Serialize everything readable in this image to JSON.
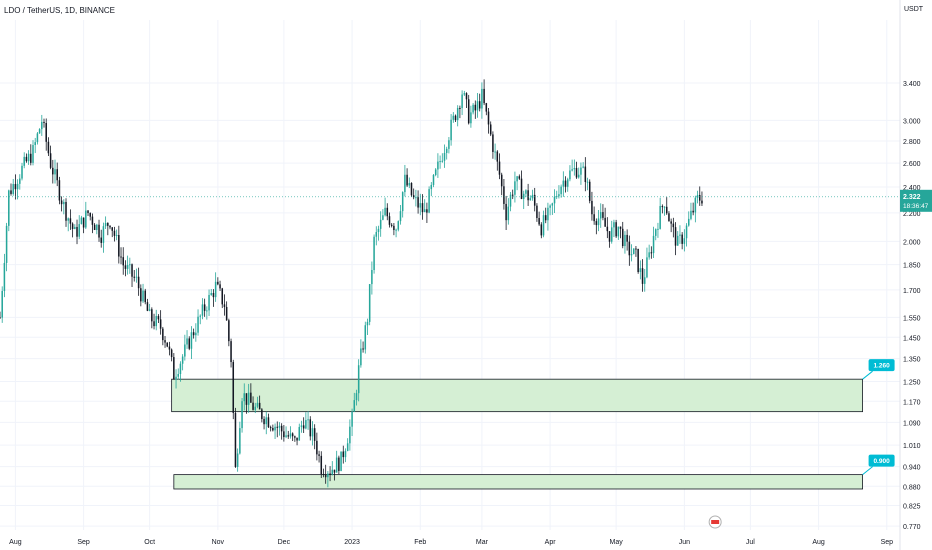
{
  "header": {
    "symbol_line": "LDO / TetherUS, 1D, BINANCE",
    "unit": "USDT"
  },
  "colors": {
    "up": "#26a69a",
    "down": "#131722",
    "zone_fill": "#d5efd4",
    "zone_stroke": "#131722",
    "label_bg": "#00bcd4",
    "price_bg": "#26a69a",
    "grid": "#f0f3fa"
  },
  "chart_data": {
    "type": "candlestick",
    "y_scale": "log",
    "ylim": [
      0.76,
      4.2
    ],
    "x_range": [
      "2022-07-25",
      "2023-09-07"
    ],
    "yticks": [
      "3.400",
      "3.000",
      "2.800",
      "2.600",
      "2.400",
      "2.200",
      "2.000",
      "1.850",
      "1.700",
      "1.550",
      "1.450",
      "1.350",
      "1.250",
      "1.170",
      "1.090",
      "1.010",
      "0.940",
      "0.880",
      "0.825",
      "0.770"
    ],
    "xticks": [
      {
        "label": "Aug",
        "date": "2022-08-01"
      },
      {
        "label": "Sep",
        "date": "2022-09-01"
      },
      {
        "label": "Oct",
        "date": "2022-10-01"
      },
      {
        "label": "Nov",
        "date": "2022-11-01"
      },
      {
        "label": "Dec",
        "date": "2022-12-01"
      },
      {
        "label": "2023",
        "date": "2023-01-01"
      },
      {
        "label": "Feb",
        "date": "2023-02-01"
      },
      {
        "label": "Mar",
        "date": "2023-03-01"
      },
      {
        "label": "Apr",
        "date": "2023-04-01"
      },
      {
        "label": "May",
        "date": "2023-05-01"
      },
      {
        "label": "Jun",
        "date": "2023-06-01"
      },
      {
        "label": "Jul",
        "date": "2023-07-01"
      },
      {
        "label": "Aug",
        "date": "2023-08-01"
      },
      {
        "label": "Sep",
        "date": "2023-09-01"
      }
    ],
    "trend_points": [
      [
        "2022-07-25",
        1.55
      ],
      [
        "2022-07-29",
        2.35
      ],
      [
        "2022-08-04",
        2.55
      ],
      [
        "2022-08-09",
        2.7
      ],
      [
        "2022-08-13",
        3.0
      ],
      [
        "2022-08-17",
        2.6
      ],
      [
        "2022-08-23",
        2.25
      ],
      [
        "2022-08-28",
        2.05
      ],
      [
        "2022-09-03",
        2.2
      ],
      [
        "2022-09-09",
        2.05
      ],
      [
        "2022-09-13",
        2.15
      ],
      [
        "2022-09-19",
        1.85
      ],
      [
        "2022-09-25",
        1.75
      ],
      [
        "2022-10-01",
        1.55
      ],
      [
        "2022-10-06",
        1.5
      ],
      [
        "2022-10-09",
        1.42
      ],
      [
        "2022-10-12",
        1.28
      ],
      [
        "2022-10-16",
        1.36
      ],
      [
        "2022-10-21",
        1.48
      ],
      [
        "2022-10-26",
        1.6
      ],
      [
        "2022-10-31",
        1.72
      ],
      [
        "2022-11-04",
        1.62
      ],
      [
        "2022-11-07",
        1.35
      ],
      [
        "2022-11-09",
        0.93
      ],
      [
        "2022-11-12",
        1.2
      ],
      [
        "2022-11-18",
        1.14
      ],
      [
        "2022-11-24",
        1.1
      ],
      [
        "2022-11-30",
        1.06
      ],
      [
        "2022-12-06",
        1.02
      ],
      [
        "2022-12-10",
        1.1
      ],
      [
        "2022-12-15",
        1.03
      ],
      [
        "2022-12-18",
        0.94
      ],
      [
        "2022-12-22",
        0.93
      ],
      [
        "2022-12-27",
        0.96
      ],
      [
        "2023-01-01",
        1.1
      ],
      [
        "2023-01-04",
        1.3
      ],
      [
        "2023-01-08",
        1.55
      ],
      [
        "2023-01-11",
        2.0
      ],
      [
        "2023-01-16",
        2.2
      ],
      [
        "2023-01-21",
        2.1
      ],
      [
        "2023-01-25",
        2.45
      ],
      [
        "2023-01-29",
        2.3
      ],
      [
        "2023-02-03",
        2.2
      ],
      [
        "2023-02-08",
        2.5
      ],
      [
        "2023-02-12",
        2.75
      ],
      [
        "2023-02-16",
        3.0
      ],
      [
        "2023-02-20",
        3.3
      ],
      [
        "2023-02-23",
        3.05
      ],
      [
        "2023-02-26",
        3.1
      ],
      [
        "2023-03-01",
        3.25
      ],
      [
        "2023-03-05",
        2.85
      ],
      [
        "2023-03-09",
        2.5
      ],
      [
        "2023-03-12",
        2.2
      ],
      [
        "2023-03-16",
        2.45
      ],
      [
        "2023-03-20",
        2.35
      ],
      [
        "2023-03-24",
        2.3
      ],
      [
        "2023-03-28",
        2.1
      ],
      [
        "2023-04-01",
        2.2
      ],
      [
        "2023-04-05",
        2.4
      ],
      [
        "2023-04-09",
        2.5
      ],
      [
        "2023-04-13",
        2.55
      ],
      [
        "2023-04-17",
        2.5
      ],
      [
        "2023-04-20",
        2.2
      ],
      [
        "2023-04-24",
        2.15
      ],
      [
        "2023-04-28",
        2.05
      ],
      [
        "2023-05-02",
        2.1
      ],
      [
        "2023-05-06",
        1.95
      ],
      [
        "2023-05-10",
        1.9
      ],
      [
        "2023-05-13",
        1.75
      ],
      [
        "2023-05-16",
        1.9
      ],
      [
        "2023-05-19",
        2.1
      ],
      [
        "2023-05-23",
        2.3
      ],
      [
        "2023-05-26",
        2.1
      ],
      [
        "2023-05-29",
        1.98
      ],
      [
        "2023-06-01",
        2.05
      ],
      [
        "2023-06-04",
        2.18
      ],
      [
        "2023-06-07",
        2.3
      ],
      [
        "2023-06-09",
        2.322
      ]
    ],
    "zones": [
      {
        "label": "1.260",
        "start": "2022-10-11",
        "end": "2023-08-21",
        "top": 1.26,
        "bottom": 1.13
      },
      {
        "label": "0.900",
        "start": "2022-10-12",
        "end": "2023-08-21",
        "top": 0.915,
        "bottom": 0.872
      }
    ],
    "last_price": {
      "value": 2.322,
      "label": "2.322",
      "countdown": "18:36:47"
    }
  }
}
